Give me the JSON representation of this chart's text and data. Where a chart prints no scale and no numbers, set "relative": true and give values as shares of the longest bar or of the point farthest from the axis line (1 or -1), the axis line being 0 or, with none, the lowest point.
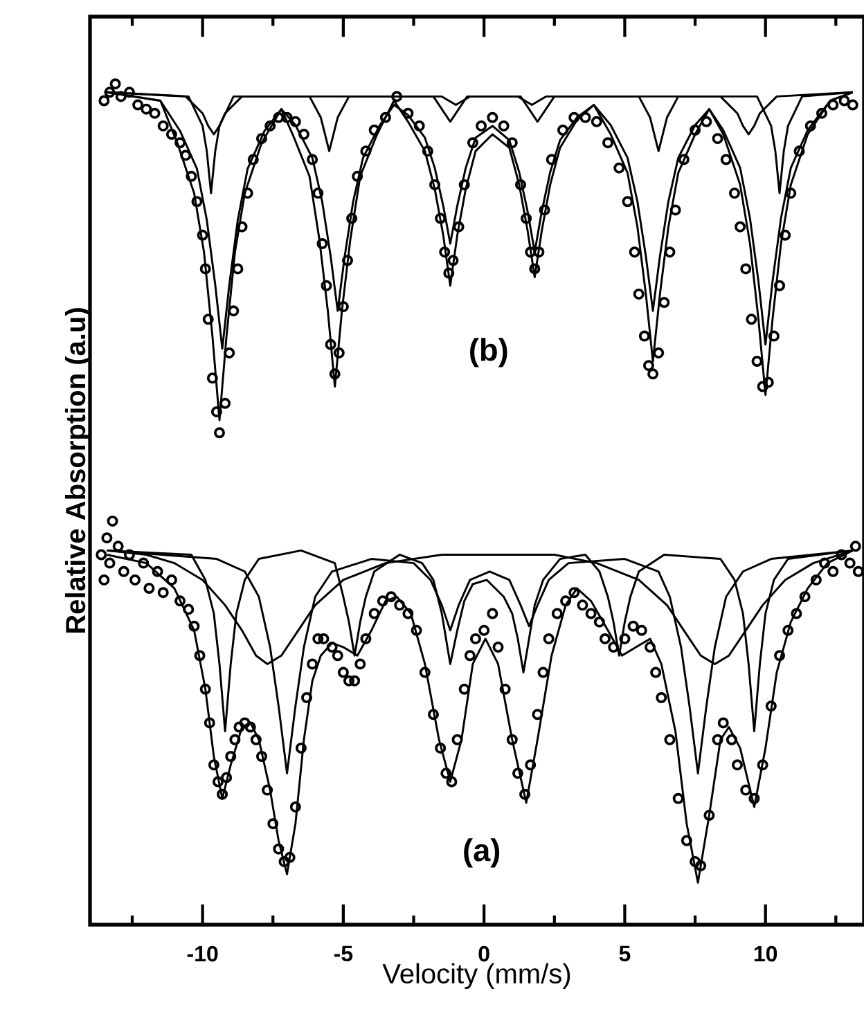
{
  "chart_data": {
    "type": "line",
    "relative": true,
    "xlabel": "Velocity (mm/s)",
    "ylabel": "Relative Absorption (a.u)",
    "xlim": [
      -14,
      13.5
    ],
    "xticks": [
      {
        "value": -12.5,
        "label": null
      },
      -10,
      {
        "value": -7.5,
        "label": null
      },
      -5,
      {
        "value": -2.5,
        "label": null
      },
      0,
      {
        "value": 2.5,
        "label": null
      },
      5,
      {
        "value": 7.5,
        "label": null
      },
      10,
      {
        "value": 12.5,
        "label": null
      }
    ],
    "annotations": [
      "(a)",
      "(b)"
    ],
    "series": [
      {
        "type": "line",
        "color": "#000000",
        "x": [
          -13.4,
          -11.5,
          -10.9,
          -10.3,
          -9.95,
          -9.65,
          -9.4,
          -9.15,
          -8.85,
          -8.5,
          -7.9,
          -7.2,
          -6.8,
          -6.2,
          -5.85,
          -5.55,
          -5.3,
          -5.05,
          -4.75,
          -4.4,
          -3.8,
          -3.2,
          -2.7,
          -2.1,
          -1.75,
          -1.45,
          -1.2,
          -0.95,
          -0.65,
          -0.3,
          0.3,
          0.9,
          1.25,
          1.55,
          1.8,
          2.05,
          2.35,
          2.7,
          3.3,
          3.9,
          4.5,
          5.1,
          5.45,
          5.75,
          6.0,
          6.25,
          6.55,
          6.9,
          7.5,
          8.0,
          8.5,
          9.1,
          9.45,
          9.75,
          10.0,
          10.25,
          10.55,
          10.9,
          11.5,
          12.3,
          13.1
        ],
        "values": [
          0.99,
          0.98,
          0.93,
          0.87,
          0.8,
          0.7,
          0.6,
          0.7,
          0.8,
          0.87,
          0.93,
          0.97,
          0.94,
          0.89,
          0.815,
          0.73,
          0.64,
          0.73,
          0.815,
          0.89,
          0.94,
          0.98,
          0.955,
          0.92,
          0.875,
          0.82,
          0.76,
          0.82,
          0.875,
          0.92,
          0.94,
          0.924,
          0.88,
          0.825,
          0.77,
          0.825,
          0.88,
          0.924,
          0.957,
          0.975,
          0.94,
          0.894,
          0.83,
          0.75,
          0.67,
          0.75,
          0.83,
          0.894,
          0.94,
          0.97,
          0.94,
          0.88,
          0.81,
          0.72,
          0.63,
          0.72,
          0.81,
          0.88,
          0.94,
          0.98,
          0.99
        ]
      },
      {
        "type": "line",
        "color": "#000000",
        "x": [
          -13.4,
          -11.5,
          -10.8,
          -10.2,
          -9.85,
          -9.55,
          -9.3,
          -9.05,
          -8.75,
          -8.4,
          -7.8,
          -7.2,
          -6.7,
          -6.1,
          -5.75,
          -5.45,
          -5.2,
          -4.95,
          -4.65,
          -4.3,
          -3.7,
          -3.2,
          -2.7,
          -2.1,
          -1.75,
          -1.45,
          -1.2,
          -0.95,
          -0.65,
          -0.3,
          0.3,
          0.9,
          1.25,
          1.55,
          1.8,
          2.05,
          2.35,
          2.7,
          3.3,
          3.9,
          4.5,
          5.1,
          5.45,
          5.75,
          6.0,
          6.25,
          6.55,
          6.9,
          7.5,
          8.0,
          8.5,
          9.1,
          9.45,
          9.75,
          10.0,
          10.25,
          10.55,
          10.9,
          11.5,
          12.3,
          13.1
        ],
        "values": [
          0.99,
          0.98,
          0.944,
          0.899,
          0.838,
          0.761,
          0.685,
          0.761,
          0.838,
          0.899,
          0.944,
          0.97,
          0.951,
          0.912,
          0.86,
          0.795,
          0.73,
          0.795,
          0.86,
          0.912,
          0.951,
          0.975,
          0.963,
          0.936,
          0.9,
          0.855,
          0.81,
          0.855,
          0.9,
          0.936,
          0.95,
          0.933,
          0.895,
          0.848,
          0.8,
          0.848,
          0.895,
          0.933,
          0.96,
          0.975,
          0.951,
          0.912,
          0.86,
          0.795,
          0.73,
          0.795,
          0.86,
          0.912,
          0.951,
          0.97,
          0.945,
          0.9,
          0.84,
          0.765,
          0.69,
          0.765,
          0.84,
          0.9,
          0.945,
          0.98,
          0.99
        ]
      },
      {
        "type": "line",
        "color": "#000000",
        "x": [
          -13.4,
          -10.5,
          -10.0,
          -9.85,
          -9.7,
          -9.55,
          -9.4,
          -8.9,
          -6.2,
          -5.8,
          -5.5,
          -5.2,
          -4.8,
          -1.8,
          -1.5,
          -1.2,
          -0.9,
          -0.6,
          1.3,
          1.6,
          1.9,
          2.2,
          2.5,
          5.5,
          5.9,
          6.2,
          6.5,
          6.9,
          9.7,
          10.2,
          10.35,
          10.5,
          10.65,
          10.8,
          11.3,
          13.1
        ],
        "values": [
          0.99,
          0.985,
          0.95,
          0.92,
          0.87,
          0.92,
          0.95,
          0.985,
          0.985,
          0.96,
          0.92,
          0.96,
          0.985,
          0.985,
          0.97,
          0.955,
          0.97,
          0.985,
          0.985,
          0.97,
          0.955,
          0.97,
          0.985,
          0.985,
          0.96,
          0.92,
          0.96,
          0.985,
          0.985,
          0.95,
          0.92,
          0.87,
          0.92,
          0.95,
          0.985,
          0.99
        ]
      },
      {
        "type": "line",
        "color": "#000000",
        "x": [
          -13.4,
          -10.6,
          -10.0,
          -9.8,
          -9.6,
          -9.4,
          -9.2,
          -8.6,
          -1.5,
          -1.0,
          -0.5,
          1.2,
          1.7,
          2.2,
          8.4,
          9.0,
          9.2,
          9.4,
          9.6,
          9.8,
          10.4,
          13.1
        ],
        "values": [
          0.99,
          0.985,
          0.965,
          0.95,
          0.94,
          0.95,
          0.965,
          0.985,
          0.985,
          0.975,
          0.985,
          0.985,
          0.975,
          0.985,
          0.985,
          0.965,
          0.95,
          0.94,
          0.95,
          0.965,
          0.985,
          0.99
        ]
      },
      {
        "type": "line",
        "color": "#000000",
        "x": [
          -13.4,
          -12.0,
          -11.0,
          -10.3,
          -9.9,
          -9.6,
          -9.3,
          -9.0,
          -8.6,
          -8.3,
          -8.0,
          -7.6,
          -7.3,
          -7.0,
          -6.7,
          -6.4,
          -6.1,
          -5.8,
          -5.4,
          -5.0,
          -4.5,
          -4.0,
          -3.5,
          -3.1,
          -2.6,
          -2.1,
          -1.6,
          -1.2,
          -0.8,
          -0.4,
          0.05,
          0.5,
          1.0,
          1.5,
          1.9,
          2.4,
          2.9,
          3.3,
          3.8,
          4.4,
          4.9,
          5.4,
          5.9,
          6.3,
          6.8,
          7.2,
          7.6,
          8.0,
          8.4,
          8.7,
          9.1,
          9.6,
          10.0,
          10.4,
          10.9,
          11.5,
          12.2,
          13.1
        ],
        "values": [
          0.44,
          0.43,
          0.4,
          0.35,
          0.28,
          0.2,
          0.15,
          0.19,
          0.235,
          0.24,
          0.22,
          0.16,
          0.1,
          0.06,
          0.12,
          0.22,
          0.29,
          0.32,
          0.335,
          0.33,
          0.32,
          0.35,
          0.385,
          0.39,
          0.37,
          0.31,
          0.22,
          0.17,
          0.22,
          0.31,
          0.34,
          0.31,
          0.22,
          0.145,
          0.22,
          0.32,
          0.38,
          0.4,
          0.385,
          0.35,
          0.32,
          0.33,
          0.34,
          0.31,
          0.23,
          0.12,
          0.05,
          0.13,
          0.22,
          0.235,
          0.21,
          0.14,
          0.21,
          0.3,
          0.36,
          0.4,
          0.43,
          0.445
        ]
      },
      {
        "type": "line",
        "color": "#000000",
        "x": [
          -13.4,
          -10.4,
          -9.9,
          -9.6,
          -9.4,
          -9.2,
          -9.0,
          -8.8,
          -8.5,
          -8.0,
          -6.5,
          -5.3,
          -5.0,
          -4.8,
          -4.6,
          -4.4,
          -4.2,
          -3.9,
          -3.0,
          -2.2,
          -1.8,
          -1.5,
          -1.2,
          -0.95,
          -0.7,
          -0.4,
          0.1,
          0.7,
          1.0,
          1.2,
          1.4,
          1.6,
          1.8,
          2.1,
          2.7,
          3.6,
          4.1,
          4.4,
          4.6,
          4.8,
          5.0,
          5.2,
          5.5,
          6.4,
          8.4,
          8.9,
          9.2,
          9.4,
          9.6,
          9.8,
          10.0,
          10.3,
          10.8,
          13.1
        ],
        "values": [
          0.445,
          0.44,
          0.41,
          0.37,
          0.31,
          0.23,
          0.31,
          0.37,
          0.41,
          0.435,
          0.445,
          0.43,
          0.39,
          0.36,
          0.32,
          0.36,
          0.39,
          0.42,
          0.44,
          0.43,
          0.41,
          0.37,
          0.31,
          0.35,
          0.385,
          0.405,
          0.41,
          0.39,
          0.37,
          0.34,
          0.3,
          0.34,
          0.38,
          0.41,
          0.435,
          0.44,
          0.42,
          0.39,
          0.36,
          0.32,
          0.36,
          0.39,
          0.42,
          0.44,
          0.435,
          0.41,
          0.37,
          0.31,
          0.23,
          0.31,
          0.37,
          0.41,
          0.435,
          0.445
        ]
      },
      {
        "type": "line",
        "color": "#000000",
        "x": [
          -13.4,
          -9.5,
          -8.5,
          -8.0,
          -7.6,
          -7.3,
          -7.0,
          -6.7,
          -6.4,
          -6.0,
          -5.4,
          -4.0,
          -2.5,
          -1.9,
          -1.5,
          -1.2,
          -0.9,
          -0.5,
          0.2,
          0.9,
          1.3,
          1.6,
          1.9,
          2.3,
          3.0,
          5.0,
          6.2,
          6.6,
          7.0,
          7.3,
          7.6,
          7.9,
          8.2,
          8.6,
          9.2,
          10.2,
          13.1
        ],
        "values": [
          0.445,
          0.435,
          0.42,
          0.39,
          0.33,
          0.26,
          0.18,
          0.26,
          0.33,
          0.39,
          0.42,
          0.435,
          0.43,
          0.41,
          0.38,
          0.35,
          0.38,
          0.41,
          0.42,
          0.41,
          0.38,
          0.355,
          0.38,
          0.41,
          0.43,
          0.435,
          0.42,
          0.39,
          0.33,
          0.26,
          0.18,
          0.26,
          0.33,
          0.39,
          0.42,
          0.435,
          0.445
        ]
      },
      {
        "type": "line",
        "color": "#000000",
        "x": [
          -13.4,
          -12.0,
          -11.0,
          -10.0,
          -9.2,
          -8.6,
          -8.1,
          -7.7,
          -7.2,
          -6.6,
          -6.0,
          -5.0,
          -3.5,
          -1.5,
          0.5,
          2.5,
          4.0,
          5.5,
          6.5,
          7.1,
          7.7,
          8.2,
          8.7,
          9.3,
          9.9,
          10.7,
          11.7,
          13.1
        ],
        "values": [
          0.445,
          0.44,
          0.43,
          0.41,
          0.38,
          0.35,
          0.32,
          0.31,
          0.32,
          0.35,
          0.38,
          0.41,
          0.43,
          0.44,
          0.44,
          0.44,
          0.43,
          0.41,
          0.38,
          0.35,
          0.32,
          0.31,
          0.32,
          0.35,
          0.38,
          0.41,
          0.43,
          0.445
        ]
      },
      {
        "type": "scatter",
        "marker": "circle",
        "color": "#000000",
        "x": [
          -13.5,
          -13.3,
          -13.1,
          -12.9,
          -12.6,
          -12.3,
          -12.0,
          -11.7,
          -11.4,
          -11.1,
          -10.8,
          -10.6,
          -10.4,
          -10.2,
          -10.0,
          -9.9,
          -9.8,
          -9.65,
          -9.5,
          -9.4,
          -9.2,
          -9.05,
          -8.9,
          -8.75,
          -8.6,
          -8.4,
          -8.2,
          -7.9,
          -7.6,
          -7.3,
          -7.0,
          -6.7,
          -6.4,
          -6.1,
          -5.9,
          -5.75,
          -5.6,
          -5.45,
          -5.3,
          -5.15,
          -5.0,
          -4.85,
          -4.7,
          -4.5,
          -4.2,
          -3.9,
          -3.5,
          -3.1,
          -2.7,
          -2.3,
          -2.0,
          -1.75,
          -1.55,
          -1.4,
          -1.25,
          -1.1,
          -0.9,
          -0.7,
          -0.4,
          -0.1,
          0.3,
          0.7,
          1.0,
          1.3,
          1.5,
          1.65,
          1.8,
          1.95,
          2.15,
          2.4,
          2.8,
          3.2,
          3.6,
          4.0,
          4.4,
          4.8,
          5.1,
          5.35,
          5.5,
          5.7,
          5.85,
          6.0,
          6.2,
          6.4,
          6.6,
          6.8,
          7.1,
          7.5,
          7.9,
          8.3,
          8.6,
          8.9,
          9.1,
          9.3,
          9.5,
          9.7,
          9.9,
          10.1,
          10.3,
          10.5,
          10.7,
          10.9,
          11.2,
          11.6,
          12.0,
          12.4,
          12.8,
          13.1
        ],
        "values": [
          0.98,
          0.99,
          1.0,
          0.985,
          0.99,
          0.975,
          0.97,
          0.965,
          0.95,
          0.94,
          0.93,
          0.915,
          0.89,
          0.86,
          0.82,
          0.78,
          0.72,
          0.65,
          0.61,
          0.585,
          0.62,
          0.68,
          0.73,
          0.78,
          0.83,
          0.87,
          0.91,
          0.935,
          0.95,
          0.96,
          0.96,
          0.955,
          0.94,
          0.91,
          0.87,
          0.81,
          0.76,
          0.69,
          0.655,
          0.68,
          0.735,
          0.79,
          0.84,
          0.89,
          0.92,
          0.945,
          0.96,
          0.985,
          0.965,
          0.95,
          0.92,
          0.88,
          0.84,
          0.8,
          0.775,
          0.79,
          0.83,
          0.88,
          0.93,
          0.95,
          0.96,
          0.95,
          0.93,
          0.88,
          0.84,
          0.8,
          0.78,
          0.8,
          0.85,
          0.91,
          0.945,
          0.96,
          0.96,
          0.955,
          0.93,
          0.9,
          0.86,
          0.8,
          0.75,
          0.7,
          0.665,
          0.655,
          0.68,
          0.74,
          0.8,
          0.85,
          0.91,
          0.945,
          0.955,
          0.935,
          0.91,
          0.87,
          0.83,
          0.78,
          0.72,
          0.67,
          0.64,
          0.645,
          0.7,
          0.76,
          0.82,
          0.87,
          0.92,
          0.95,
          0.965,
          0.975,
          0.98,
          0.975
        ]
      },
      {
        "type": "scatter",
        "marker": "circle",
        "color": "#000000",
        "x": [
          -13.6,
          -13.5,
          -13.4,
          -13.3,
          -13.2,
          -13.0,
          -12.8,
          -12.6,
          -12.4,
          -12.1,
          -11.9,
          -11.6,
          -11.4,
          -11.1,
          -10.8,
          -10.5,
          -10.3,
          -10.1,
          -9.9,
          -9.75,
          -9.6,
          -9.45,
          -9.3,
          -9.15,
          -9.0,
          -8.85,
          -8.7,
          -8.5,
          -8.3,
          -8.1,
          -7.9,
          -7.7,
          -7.5,
          -7.3,
          -7.1,
          -6.9,
          -6.7,
          -6.5,
          -6.3,
          -6.1,
          -5.9,
          -5.7,
          -5.4,
          -5.2,
          -5.0,
          -4.8,
          -4.6,
          -4.4,
          -4.2,
          -3.9,
          -3.6,
          -3.3,
          -3.0,
          -2.7,
          -2.4,
          -2.1,
          -1.8,
          -1.55,
          -1.35,
          -1.15,
          -0.95,
          -0.7,
          -0.5,
          -0.3,
          0.0,
          0.3,
          0.5,
          0.75,
          1.0,
          1.2,
          1.45,
          1.65,
          1.9,
          2.1,
          2.3,
          2.6,
          2.9,
          3.2,
          3.5,
          3.8,
          4.1,
          4.3,
          4.6,
          5.0,
          5.3,
          5.6,
          5.9,
          6.1,
          6.3,
          6.6,
          6.9,
          7.2,
          7.5,
          7.7,
          8.0,
          8.3,
          8.5,
          8.8,
          9.0,
          9.3,
          9.6,
          9.9,
          10.2,
          10.5,
          10.8,
          11.1,
          11.4,
          11.8,
          12.1,
          12.4,
          12.7,
          13.0,
          13.2,
          13.3
        ],
        "values": [
          0.44,
          0.41,
          0.46,
          0.43,
          0.48,
          0.45,
          0.42,
          0.44,
          0.41,
          0.43,
          0.4,
          0.42,
          0.395,
          0.41,
          0.385,
          0.375,
          0.355,
          0.32,
          0.28,
          0.24,
          0.19,
          0.17,
          0.155,
          0.175,
          0.2,
          0.22,
          0.235,
          0.24,
          0.235,
          0.22,
          0.2,
          0.16,
          0.12,
          0.09,
          0.075,
          0.08,
          0.14,
          0.21,
          0.27,
          0.31,
          0.34,
          0.34,
          0.33,
          0.32,
          0.3,
          0.29,
          0.29,
          0.31,
          0.34,
          0.37,
          0.385,
          0.39,
          0.38,
          0.37,
          0.35,
          0.3,
          0.25,
          0.21,
          0.18,
          0.17,
          0.22,
          0.28,
          0.32,
          0.34,
          0.35,
          0.37,
          0.33,
          0.28,
          0.22,
          0.18,
          0.155,
          0.19,
          0.25,
          0.3,
          0.34,
          0.37,
          0.385,
          0.395,
          0.38,
          0.37,
          0.36,
          0.34,
          0.33,
          0.34,
          0.355,
          0.35,
          0.33,
          0.3,
          0.27,
          0.22,
          0.15,
          0.1,
          0.075,
          0.07,
          0.13,
          0.22,
          0.24,
          0.22,
          0.19,
          0.16,
          0.15,
          0.19,
          0.26,
          0.32,
          0.35,
          0.37,
          0.39,
          0.41,
          0.43,
          0.42,
          0.44,
          0.43,
          0.45,
          0.42
        ]
      }
    ]
  }
}
